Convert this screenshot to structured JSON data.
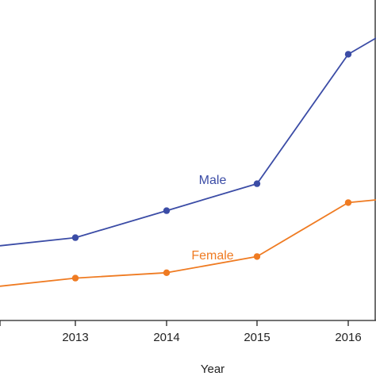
{
  "chart_data": {
    "type": "line",
    "x": [
      "2013",
      "2014",
      "2015",
      "2016"
    ],
    "xlabel": "Year",
    "ylabel": "",
    "grid": false,
    "legend": "inline labels",
    "series": [
      {
        "name": "Male",
        "color": "#3b4ca6",
        "values": [
          2.05,
          2.55,
          3.05,
          5.45
        ]
      },
      {
        "name": "Female",
        "color": "#ef7b22",
        "values": [
          1.3,
          1.4,
          1.7,
          2.7
        ]
      }
    ]
  }
}
